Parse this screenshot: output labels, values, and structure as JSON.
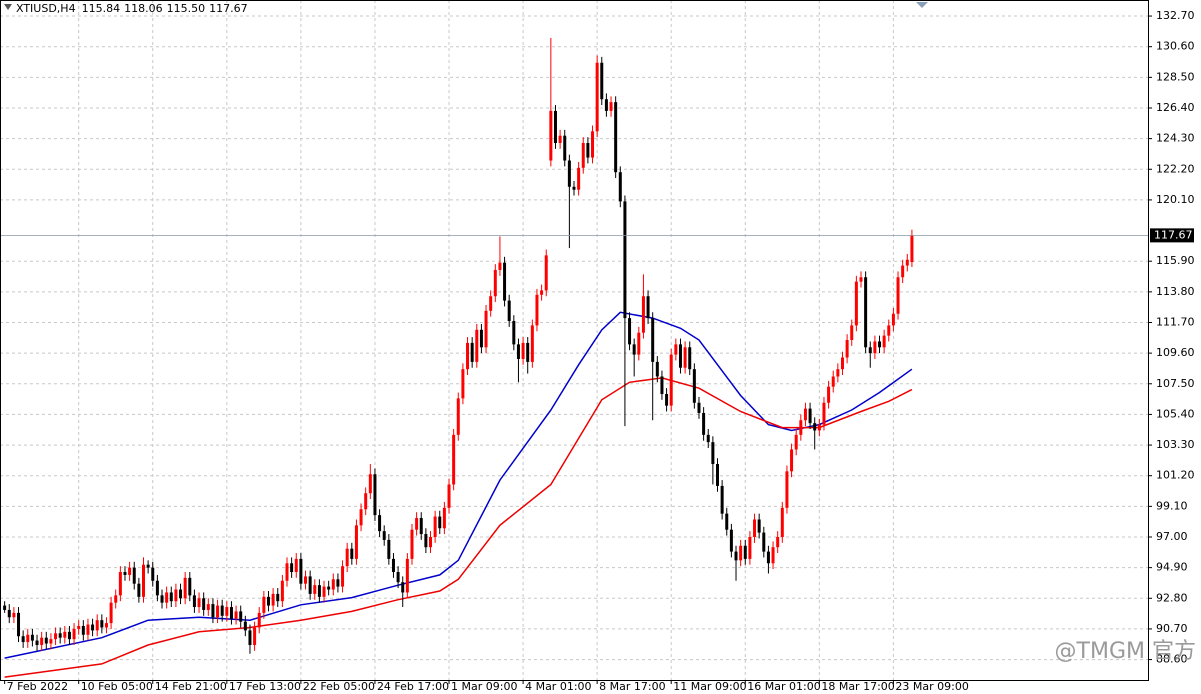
{
  "chart_data": {
    "type": "candlestick",
    "header": {
      "symbol": "XTIUSD,H4",
      "ohlc_labels": [
        "115.84",
        "118.06",
        "115.50",
        "117.67"
      ]
    },
    "up_color": "#ff0000",
    "down_color": "#000000",
    "grid": true,
    "ylim": [
      87.2,
      133.8
    ],
    "xlim": [
      -1,
      247
    ],
    "yticks": [
      {
        "value": 132.7,
        "label": "132.70"
      },
      {
        "value": 130.6,
        "label": "130.60"
      },
      {
        "value": 128.5,
        "label": "128.50"
      },
      {
        "value": 126.4,
        "label": "126.40"
      },
      {
        "value": 124.3,
        "label": "124.30"
      },
      {
        "value": 122.2,
        "label": "122.20"
      },
      {
        "value": 120.1,
        "label": "120.10"
      },
      {
        "value": 115.9,
        "label": "115.90"
      },
      {
        "value": 113.8,
        "label": "113.80"
      },
      {
        "value": 111.7,
        "label": "111.70"
      },
      {
        "value": 109.6,
        "label": "109.60"
      },
      {
        "value": 107.5,
        "label": "107.50"
      },
      {
        "value": 105.4,
        "label": "105.40"
      },
      {
        "value": 103.3,
        "label": "103.30"
      },
      {
        "value": 101.2,
        "label": "101.20"
      },
      {
        "value": 99.1,
        "label": "99.10"
      },
      {
        "value": 97.0,
        "label": "97.00"
      },
      {
        "value": 94.9,
        "label": "94.90"
      },
      {
        "value": 92.8,
        "label": "92.80"
      },
      {
        "value": 90.7,
        "label": "90.70"
      },
      {
        "value": 88.6,
        "label": "88.60"
      }
    ],
    "xticks": [
      {
        "value": 0,
        "label": "7 Feb 2022"
      },
      {
        "value": 16,
        "label": "10 Feb 05:00"
      },
      {
        "value": 32,
        "label": "14 Feb 21:00"
      },
      {
        "value": 48,
        "label": "17 Feb 13:00"
      },
      {
        "value": 64,
        "label": "22 Feb 05:00"
      },
      {
        "value": 80,
        "label": "24 Feb 17:00"
      },
      {
        "value": 96,
        "label": "1 Mar 09:00"
      },
      {
        "value": 112,
        "label": "4 Mar 01:00"
      },
      {
        "value": 128,
        "label": "8 Mar 17:00"
      },
      {
        "value": 144,
        "label": "11 Mar 09:00"
      },
      {
        "value": 160,
        "label": "16 Mar 01:00"
      },
      {
        "value": 176,
        "label": "18 Mar 17:00"
      },
      {
        "value": 192,
        "label": "23 Mar 09:00"
      }
    ],
    "last_price": 117.67,
    "watermark": "@TMGM 官方",
    "ohlc": [
      [
        92.3,
        92.6,
        91.8,
        92.0
      ],
      [
        92.0,
        92.4,
        91.1,
        91.5
      ],
      [
        91.5,
        92.2,
        91.1,
        91.8
      ],
      [
        91.8,
        92.2,
        89.8,
        90.2
      ],
      [
        90.2,
        90.6,
        89.4,
        89.8
      ],
      [
        89.8,
        90.7,
        89.4,
        90.3
      ],
      [
        90.3,
        90.7,
        89.5,
        89.9
      ],
      [
        89.9,
        90.3,
        89.2,
        89.6
      ],
      [
        89.6,
        90.5,
        89.2,
        90.1
      ],
      [
        90.1,
        90.5,
        89.3,
        89.7
      ],
      [
        89.7,
        90.4,
        89.3,
        90.0
      ],
      [
        90.0,
        90.8,
        89.6,
        90.4
      ],
      [
        90.4,
        90.8,
        89.7,
        90.1
      ],
      [
        90.1,
        90.9,
        89.7,
        90.5
      ],
      [
        90.5,
        90.9,
        89.6,
        90.0
      ],
      [
        90.0,
        91.1,
        89.6,
        90.7
      ],
      [
        90.7,
        91.3,
        90.3,
        90.9
      ],
      [
        90.9,
        91.3,
        89.9,
        90.3
      ],
      [
        90.3,
        91.4,
        89.9,
        91.0
      ],
      [
        91.0,
        91.4,
        90.2,
        90.6
      ],
      [
        90.6,
        91.7,
        90.2,
        91.3
      ],
      [
        91.3,
        91.7,
        90.4,
        90.8
      ],
      [
        90.8,
        91.5,
        90.4,
        91.1
      ],
      [
        91.1,
        92.9,
        90.7,
        92.5
      ],
      [
        92.5,
        93.4,
        92.1,
        93.0
      ],
      [
        93.0,
        95.0,
        92.6,
        94.6
      ],
      [
        94.6,
        95.0,
        94.0,
        94.4
      ],
      [
        94.4,
        95.3,
        94.0,
        94.9
      ],
      [
        94.9,
        95.3,
        93.4,
        93.8
      ],
      [
        93.8,
        94.2,
        92.5,
        92.9
      ],
      [
        92.9,
        95.6,
        92.5,
        95.1
      ],
      [
        95.1,
        95.4,
        94.5,
        94.9
      ],
      [
        94.9,
        95.3,
        93.6,
        94.0
      ],
      [
        94.0,
        94.4,
        92.6,
        93.0
      ],
      [
        93.0,
        93.4,
        92.1,
        92.5
      ],
      [
        92.5,
        93.6,
        92.1,
        93.2
      ],
      [
        93.2,
        93.6,
        92.2,
        92.6
      ],
      [
        92.6,
        93.8,
        92.2,
        93.4
      ],
      [
        93.4,
        93.8,
        92.4,
        92.8
      ],
      [
        92.8,
        94.6,
        92.4,
        94.2
      ],
      [
        94.2,
        94.6,
        92.6,
        93.0
      ],
      [
        93.0,
        93.4,
        91.8,
        92.2
      ],
      [
        92.2,
        93.2,
        91.8,
        92.8
      ],
      [
        92.8,
        93.2,
        91.6,
        92.0
      ],
      [
        92.0,
        92.8,
        91.6,
        92.4
      ],
      [
        92.4,
        92.8,
        91.1,
        91.5
      ],
      [
        91.5,
        92.7,
        91.1,
        92.3
      ],
      [
        92.3,
        92.7,
        91.2,
        91.6
      ],
      [
        91.6,
        92.6,
        91.2,
        92.2
      ],
      [
        92.2,
        92.6,
        91.0,
        91.4
      ],
      [
        91.4,
        92.3,
        91.0,
        91.9
      ],
      [
        91.9,
        92.3,
        90.8,
        91.2
      ],
      [
        91.2,
        91.6,
        90.2,
        90.6
      ],
      [
        90.6,
        91.0,
        89.0,
        89.6
      ],
      [
        89.6,
        91.2,
        89.2,
        90.8
      ],
      [
        90.8,
        92.2,
        90.4,
        91.8
      ],
      [
        91.8,
        93.3,
        91.4,
        92.9
      ],
      [
        92.9,
        93.3,
        91.9,
        92.3
      ],
      [
        92.3,
        93.5,
        91.9,
        93.1
      ],
      [
        93.1,
        93.5,
        92.2,
        92.6
      ],
      [
        92.6,
        94.4,
        92.2,
        94.0
      ],
      [
        94.0,
        95.6,
        93.6,
        95.2
      ],
      [
        95.2,
        95.6,
        94.2,
        94.6
      ],
      [
        94.6,
        95.9,
        94.2,
        95.5
      ],
      [
        95.5,
        95.9,
        93.4,
        93.8
      ],
      [
        93.8,
        94.7,
        93.4,
        94.3
      ],
      [
        94.3,
        94.7,
        92.7,
        93.1
      ],
      [
        93.1,
        94.1,
        92.7,
        93.7
      ],
      [
        93.7,
        94.1,
        92.5,
        92.9
      ],
      [
        92.9,
        94.0,
        92.5,
        93.6
      ],
      [
        93.6,
        94.0,
        93.0,
        93.4
      ],
      [
        93.4,
        94.5,
        93.0,
        94.1
      ],
      [
        94.1,
        94.5,
        93.2,
        93.6
      ],
      [
        93.6,
        95.4,
        93.2,
        95.0
      ],
      [
        95.0,
        96.6,
        94.6,
        96.2
      ],
      [
        96.2,
        96.6,
        95.1,
        95.5
      ],
      [
        95.5,
        98.2,
        95.1,
        97.8
      ],
      [
        97.8,
        99.3,
        97.4,
        98.9
      ],
      [
        98.9,
        100.4,
        98.5,
        100.0
      ],
      [
        100.0,
        102.0,
        99.6,
        101.3
      ],
      [
        101.3,
        101.7,
        98.1,
        98.5
      ],
      [
        98.5,
        98.9,
        97.0,
        97.4
      ],
      [
        97.4,
        97.8,
        96.4,
        96.8
      ],
      [
        96.8,
        97.2,
        95.1,
        95.5
      ],
      [
        95.5,
        95.9,
        94.2,
        94.6
      ],
      [
        94.6,
        95.0,
        93.5,
        93.9
      ],
      [
        93.9,
        94.3,
        92.2,
        93.2
      ],
      [
        93.2,
        95.9,
        92.8,
        95.5
      ],
      [
        95.5,
        97.9,
        95.1,
        97.5
      ],
      [
        97.5,
        98.7,
        97.1,
        98.3
      ],
      [
        98.3,
        98.7,
        96.8,
        97.2
      ],
      [
        97.2,
        97.6,
        95.9,
        96.3
      ],
      [
        96.3,
        97.4,
        95.9,
        97.0
      ],
      [
        97.0,
        98.8,
        96.6,
        98.4
      ],
      [
        98.4,
        98.8,
        97.2,
        97.6
      ],
      [
        97.6,
        99.4,
        97.2,
        99.0
      ],
      [
        99.0,
        101.0,
        98.6,
        100.6
      ],
      [
        100.6,
        104.4,
        100.2,
        104.0
      ],
      [
        104.0,
        106.9,
        103.6,
        106.5
      ],
      [
        106.5,
        108.9,
        106.1,
        108.5
      ],
      [
        108.5,
        110.7,
        108.1,
        110.3
      ],
      [
        110.3,
        110.7,
        108.6,
        109.0
      ],
      [
        109.0,
        111.6,
        108.6,
        111.2
      ],
      [
        111.2,
        111.6,
        109.6,
        110.0
      ],
      [
        110.0,
        112.9,
        109.6,
        112.5
      ],
      [
        112.5,
        113.9,
        112.1,
        113.5
      ],
      [
        113.5,
        115.7,
        113.1,
        115.3
      ],
      [
        115.3,
        117.6,
        114.9,
        115.8
      ],
      [
        115.8,
        116.2,
        112.8,
        113.2
      ],
      [
        113.2,
        113.6,
        111.4,
        111.8
      ],
      [
        111.8,
        112.2,
        109.8,
        110.2
      ],
      [
        110.2,
        110.6,
        107.6,
        109.2
      ],
      [
        109.2,
        110.7,
        108.8,
        110.3
      ],
      [
        110.3,
        110.7,
        108.2,
        109.0
      ],
      [
        109.0,
        111.9,
        108.6,
        111.5
      ],
      [
        111.5,
        114.0,
        111.1,
        113.6
      ],
      [
        113.6,
        114.3,
        113.2,
        113.9
      ],
      [
        113.9,
        116.7,
        113.5,
        116.3
      ],
      [
        122.8,
        131.2,
        122.4,
        126.2
      ],
      [
        126.2,
        126.6,
        123.6,
        124.0
      ],
      [
        124.0,
        124.9,
        123.6,
        124.5
      ],
      [
        124.5,
        124.9,
        122.4,
        122.8
      ],
      [
        122.8,
        123.2,
        116.8,
        121.0
      ],
      [
        121.0,
        121.4,
        120.4,
        120.8
      ],
      [
        120.8,
        122.7,
        120.4,
        122.3
      ],
      [
        122.3,
        124.4,
        121.9,
        124.0
      ],
      [
        124.0,
        124.4,
        122.6,
        123.0
      ],
      [
        123.0,
        125.2,
        122.6,
        124.8
      ],
      [
        124.8,
        130.0,
        124.4,
        129.5
      ],
      [
        129.5,
        129.9,
        126.6,
        127.0
      ],
      [
        127.0,
        127.4,
        125.8,
        126.2
      ],
      [
        126.2,
        127.2,
        125.8,
        126.8
      ],
      [
        126.8,
        127.2,
        121.6,
        122.0
      ],
      [
        122.0,
        122.4,
        119.6,
        120.0
      ],
      [
        120.0,
        120.4,
        104.6,
        112.0
      ],
      [
        112.0,
        112.4,
        109.8,
        110.2
      ],
      [
        110.2,
        110.6,
        108.0,
        109.5
      ],
      [
        109.5,
        111.4,
        109.1,
        111.0
      ],
      [
        111.0,
        115.0,
        110.6,
        113.5
      ],
      [
        113.5,
        113.9,
        111.6,
        112.0
      ],
      [
        112.0,
        112.4,
        105.0,
        109.0
      ],
      [
        109.0,
        109.4,
        107.6,
        108.0
      ],
      [
        108.0,
        108.4,
        106.4,
        106.8
      ],
      [
        106.8,
        107.2,
        105.6,
        106.0
      ],
      [
        106.0,
        109.9,
        105.6,
        109.5
      ],
      [
        109.5,
        110.6,
        109.1,
        110.2
      ],
      [
        110.2,
        110.6,
        108.2,
        108.6
      ],
      [
        108.6,
        110.4,
        108.2,
        110.0
      ],
      [
        110.0,
        110.4,
        108.1,
        108.5
      ],
      [
        108.5,
        108.9,
        105.8,
        106.2
      ],
      [
        106.2,
        106.6,
        105.1,
        105.5
      ],
      [
        105.5,
        105.9,
        103.6,
        104.0
      ],
      [
        104.0,
        104.4,
        103.1,
        103.5
      ],
      [
        103.5,
        103.9,
        100.6,
        102.0
      ],
      [
        102.0,
        102.4,
        100.1,
        100.5
      ],
      [
        100.5,
        100.9,
        98.2,
        98.6
      ],
      [
        98.6,
        99.0,
        97.1,
        97.5
      ],
      [
        97.5,
        97.9,
        95.6,
        96.0
      ],
      [
        96.0,
        96.4,
        94.0,
        95.4
      ],
      [
        95.4,
        96.8,
        95.0,
        96.4
      ],
      [
        96.4,
        96.8,
        95.1,
        95.5
      ],
      [
        95.5,
        97.4,
        95.1,
        97.0
      ],
      [
        97.0,
        98.6,
        96.6,
        98.2
      ],
      [
        98.2,
        98.6,
        96.9,
        97.3
      ],
      [
        97.3,
        97.7,
        95.6,
        96.0
      ],
      [
        96.0,
        96.4,
        94.5,
        95.2
      ],
      [
        95.2,
        96.7,
        94.8,
        96.3
      ],
      [
        96.3,
        97.4,
        95.9,
        97.0
      ],
      [
        97.0,
        99.4,
        96.6,
        99.0
      ],
      [
        99.0,
        101.9,
        98.6,
        101.5
      ],
      [
        101.5,
        103.4,
        101.1,
        103.0
      ],
      [
        103.0,
        104.4,
        102.6,
        104.0
      ],
      [
        104.0,
        105.4,
        103.6,
        105.0
      ],
      [
        105.0,
        106.2,
        104.6,
        105.8
      ],
      [
        105.8,
        106.2,
        104.4,
        104.8
      ],
      [
        104.8,
        105.2,
        103.0,
        104.3
      ],
      [
        104.3,
        105.1,
        103.9,
        104.7
      ],
      [
        104.7,
        106.6,
        104.3,
        106.2
      ],
      [
        106.2,
        107.7,
        105.8,
        107.3
      ],
      [
        107.3,
        108.4,
        106.9,
        108.0
      ],
      [
        108.0,
        108.9,
        107.6,
        108.5
      ],
      [
        108.5,
        109.7,
        108.1,
        109.3
      ],
      [
        109.3,
        110.9,
        108.9,
        110.5
      ],
      [
        110.5,
        111.9,
        110.1,
        111.5
      ],
      [
        111.5,
        114.9,
        111.1,
        114.5
      ],
      [
        114.5,
        115.2,
        114.1,
        114.8
      ],
      [
        114.8,
        115.2,
        109.6,
        110.0
      ],
      [
        110.0,
        110.4,
        108.6,
        109.6
      ],
      [
        109.6,
        110.8,
        109.2,
        110.4
      ],
      [
        110.4,
        110.8,
        109.6,
        110.0
      ],
      [
        110.0,
        111.2,
        109.6,
        110.8
      ],
      [
        110.8,
        111.9,
        110.4,
        111.5
      ],
      [
        111.5,
        112.7,
        111.1,
        112.3
      ],
      [
        112.3,
        115.2,
        111.9,
        114.8
      ],
      [
        114.8,
        116.0,
        114.4,
        115.6
      ],
      [
        115.6,
        116.4,
        115.2,
        116.0
      ],
      [
        115.84,
        118.06,
        115.5,
        117.67
      ]
    ],
    "lines": [
      {
        "color": "#0000cc",
        "x": [
          0,
          21,
          31,
          42,
          53,
          64,
          75,
          85,
          94,
          98,
          107,
          118,
          124,
          129,
          133,
          140,
          146,
          150,
          159,
          165,
          170,
          176,
          183,
          189,
          196
        ],
        "values": [
          88.7,
          90.1,
          91.3,
          91.5,
          91.3,
          92.35,
          92.85,
          93.7,
          94.4,
          95.4,
          100.9,
          105.7,
          108.8,
          111.2,
          112.4,
          112.0,
          111.3,
          110.5,
          106.7,
          104.7,
          104.3,
          104.7,
          105.7,
          106.9,
          108.5
        ]
      },
      {
        "color": "#ee0000",
        "x": [
          0,
          21,
          31,
          42,
          53,
          64,
          75,
          85,
          94,
          98,
          107,
          118,
          129,
          135,
          142,
          150,
          159,
          168,
          176,
          185,
          191,
          196
        ],
        "values": [
          87.4,
          88.3,
          89.6,
          90.5,
          90.8,
          91.3,
          91.9,
          92.7,
          93.3,
          94.1,
          97.8,
          100.6,
          106.4,
          107.6,
          107.9,
          107.2,
          105.6,
          104.5,
          104.5,
          105.6,
          106.3,
          107.1
        ]
      }
    ]
  }
}
